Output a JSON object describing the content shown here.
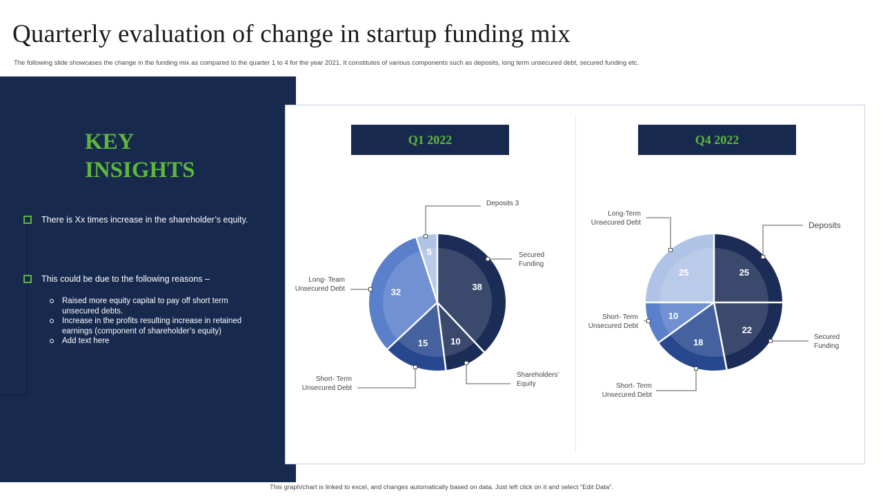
{
  "header": {
    "title": "Quarterly evaluation of change in startup funding mix",
    "subtitle": "The following slide showcases the change in the funding mix as compared to the quarter 1 to 4 for the year 2021. It constitutes of various components such as deposits, long term unsecured debt, secured funding etc."
  },
  "insights": {
    "heading_line1": "KEY",
    "heading_line2": "INSIGHTS",
    "bullets": [
      "There is Xx times increase in the shareholder’s equity.",
      "This could be due to the following reasons –"
    ],
    "sub_bullets": [
      "Raised more equity capital to pay off short term unsecured debts.",
      "Increase in the profits resulting increase in retained earnings (component of shareholder’s equity)",
      "Add text here"
    ]
  },
  "footer": {
    "note": "This graph/chart is linked to excel, and changes automatically based on data. Just left click on it and select “Edit Data”."
  },
  "colors": {
    "navy": "#172a4e",
    "green": "#5fb73a",
    "slice_dark": "#1b2c56",
    "slice_mid": "#27478f",
    "slice_blue": "#5a7fcb",
    "slice_light": "#afc3e6"
  },
  "chart_data": [
    {
      "type": "pie",
      "title": "Q1 2022",
      "slices": [
        {
          "label": "Secured Funding",
          "callout": "Secured\nFunding",
          "value": 38,
          "color": "#1b2c56"
        },
        {
          "label": "Shareholders' Equity",
          "callout": "Shareholders’\nEquity",
          "value": 10,
          "color": "#1b2c56"
        },
        {
          "label": "Short- Term Unsecured Debt",
          "callout": "Short- Term\nUnsecured Debt",
          "value": 15,
          "color": "#27478f"
        },
        {
          "label": "Long- Team Unsecured Debt",
          "callout": "Long- Team\nUnsecured Debt",
          "value": 32,
          "color": "#5a7fcb"
        },
        {
          "label": "Deposits",
          "callout": "Deposits 3",
          "value": 5,
          "color": "#afc3e6"
        }
      ]
    },
    {
      "type": "pie",
      "title": "Q4 2022",
      "slices": [
        {
          "label": "Deposits",
          "callout": "Deposits",
          "value": 25,
          "color": "#1b2c56"
        },
        {
          "label": "Secured Funding",
          "callout": "Secured\nFunding",
          "value": 22,
          "color": "#1b2c56"
        },
        {
          "label": "Short- Term Unsecured Debt",
          "callout": "Short- Term\nUnsecured Debt",
          "value": 18,
          "color": "#27478f"
        },
        {
          "label": "Short- Term Unsecured Debt",
          "callout": "Short- Term\nUnsecured Debt",
          "value": 10,
          "color": "#5a7fcb"
        },
        {
          "label": "Long-Term Unsecured Debt",
          "callout": "Long-Term\nUnsecured Debt",
          "value": 25,
          "color": "#afc3e6"
        }
      ]
    }
  ]
}
